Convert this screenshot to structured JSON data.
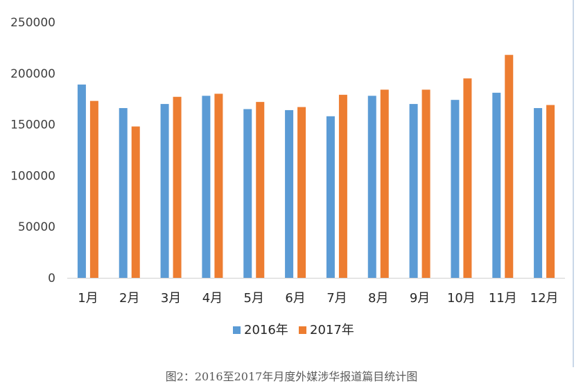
{
  "chart_data": {
    "type": "bar",
    "categories": [
      "1月",
      "2月",
      "3月",
      "4月",
      "5月",
      "6月",
      "7月",
      "8月",
      "9月",
      "10月",
      "11月",
      "12月"
    ],
    "series": [
      {
        "name": "2016年",
        "color": "#5B9BD5",
        "values": [
          189000,
          166000,
          170000,
          178000,
          165000,
          164000,
          158000,
          178000,
          170000,
          174000,
          181000,
          166000
        ]
      },
      {
        "name": "2017年",
        "color": "#ED7D31",
        "values": [
          173000,
          148000,
          177000,
          180000,
          172000,
          167000,
          179000,
          184000,
          184000,
          195000,
          218000,
          169000
        ]
      }
    ],
    "yticks": [
      "0",
      "50000",
      "100000",
      "150000",
      "200000",
      "250000"
    ],
    "ylim": [
      0,
      250000
    ],
    "grid": false,
    "legend_position": "bottom"
  },
  "caption": "图2：2016至2017年月度外媒涉华报道篇目统计图"
}
